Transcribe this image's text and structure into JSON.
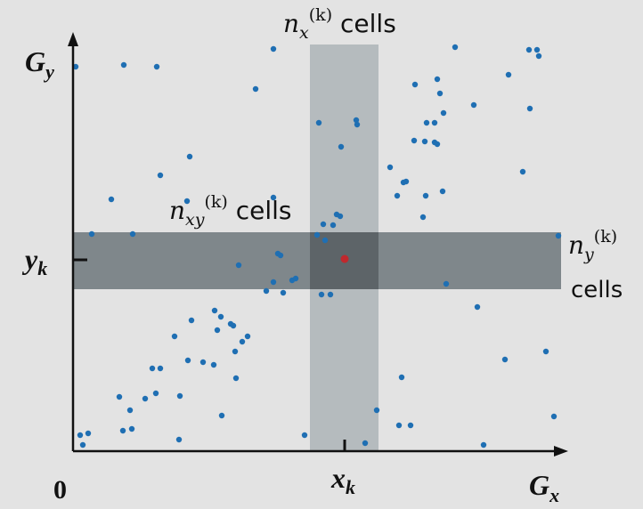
{
  "labels": {
    "axis_y": {
      "base": "G",
      "sub": "y"
    },
    "axis_x": {
      "base": "G",
      "sub": "x"
    },
    "origin": "0",
    "xk": {
      "base": "x",
      "sub": "k"
    },
    "yk": {
      "base": "y",
      "sub": "k"
    },
    "nx": {
      "base": "n",
      "sub": "x",
      "sup": "(k)",
      "suffix": " cells"
    },
    "nxy": {
      "base": "n",
      "sub": "xy",
      "sup": "(k)",
      "suffix": " cells"
    },
    "ny": {
      "base": "n",
      "sub": "y",
      "sup": "(k)",
      "line2": "cells"
    }
  },
  "colors": {
    "background": "#e3e3e3",
    "axis": "#111111",
    "point": "#1f6fb3",
    "center_point": "#c0282d",
    "vertical_band": "#b5bbbe",
    "horizontal_band": "#7f878b",
    "overlap": "#5d6468"
  }
}
